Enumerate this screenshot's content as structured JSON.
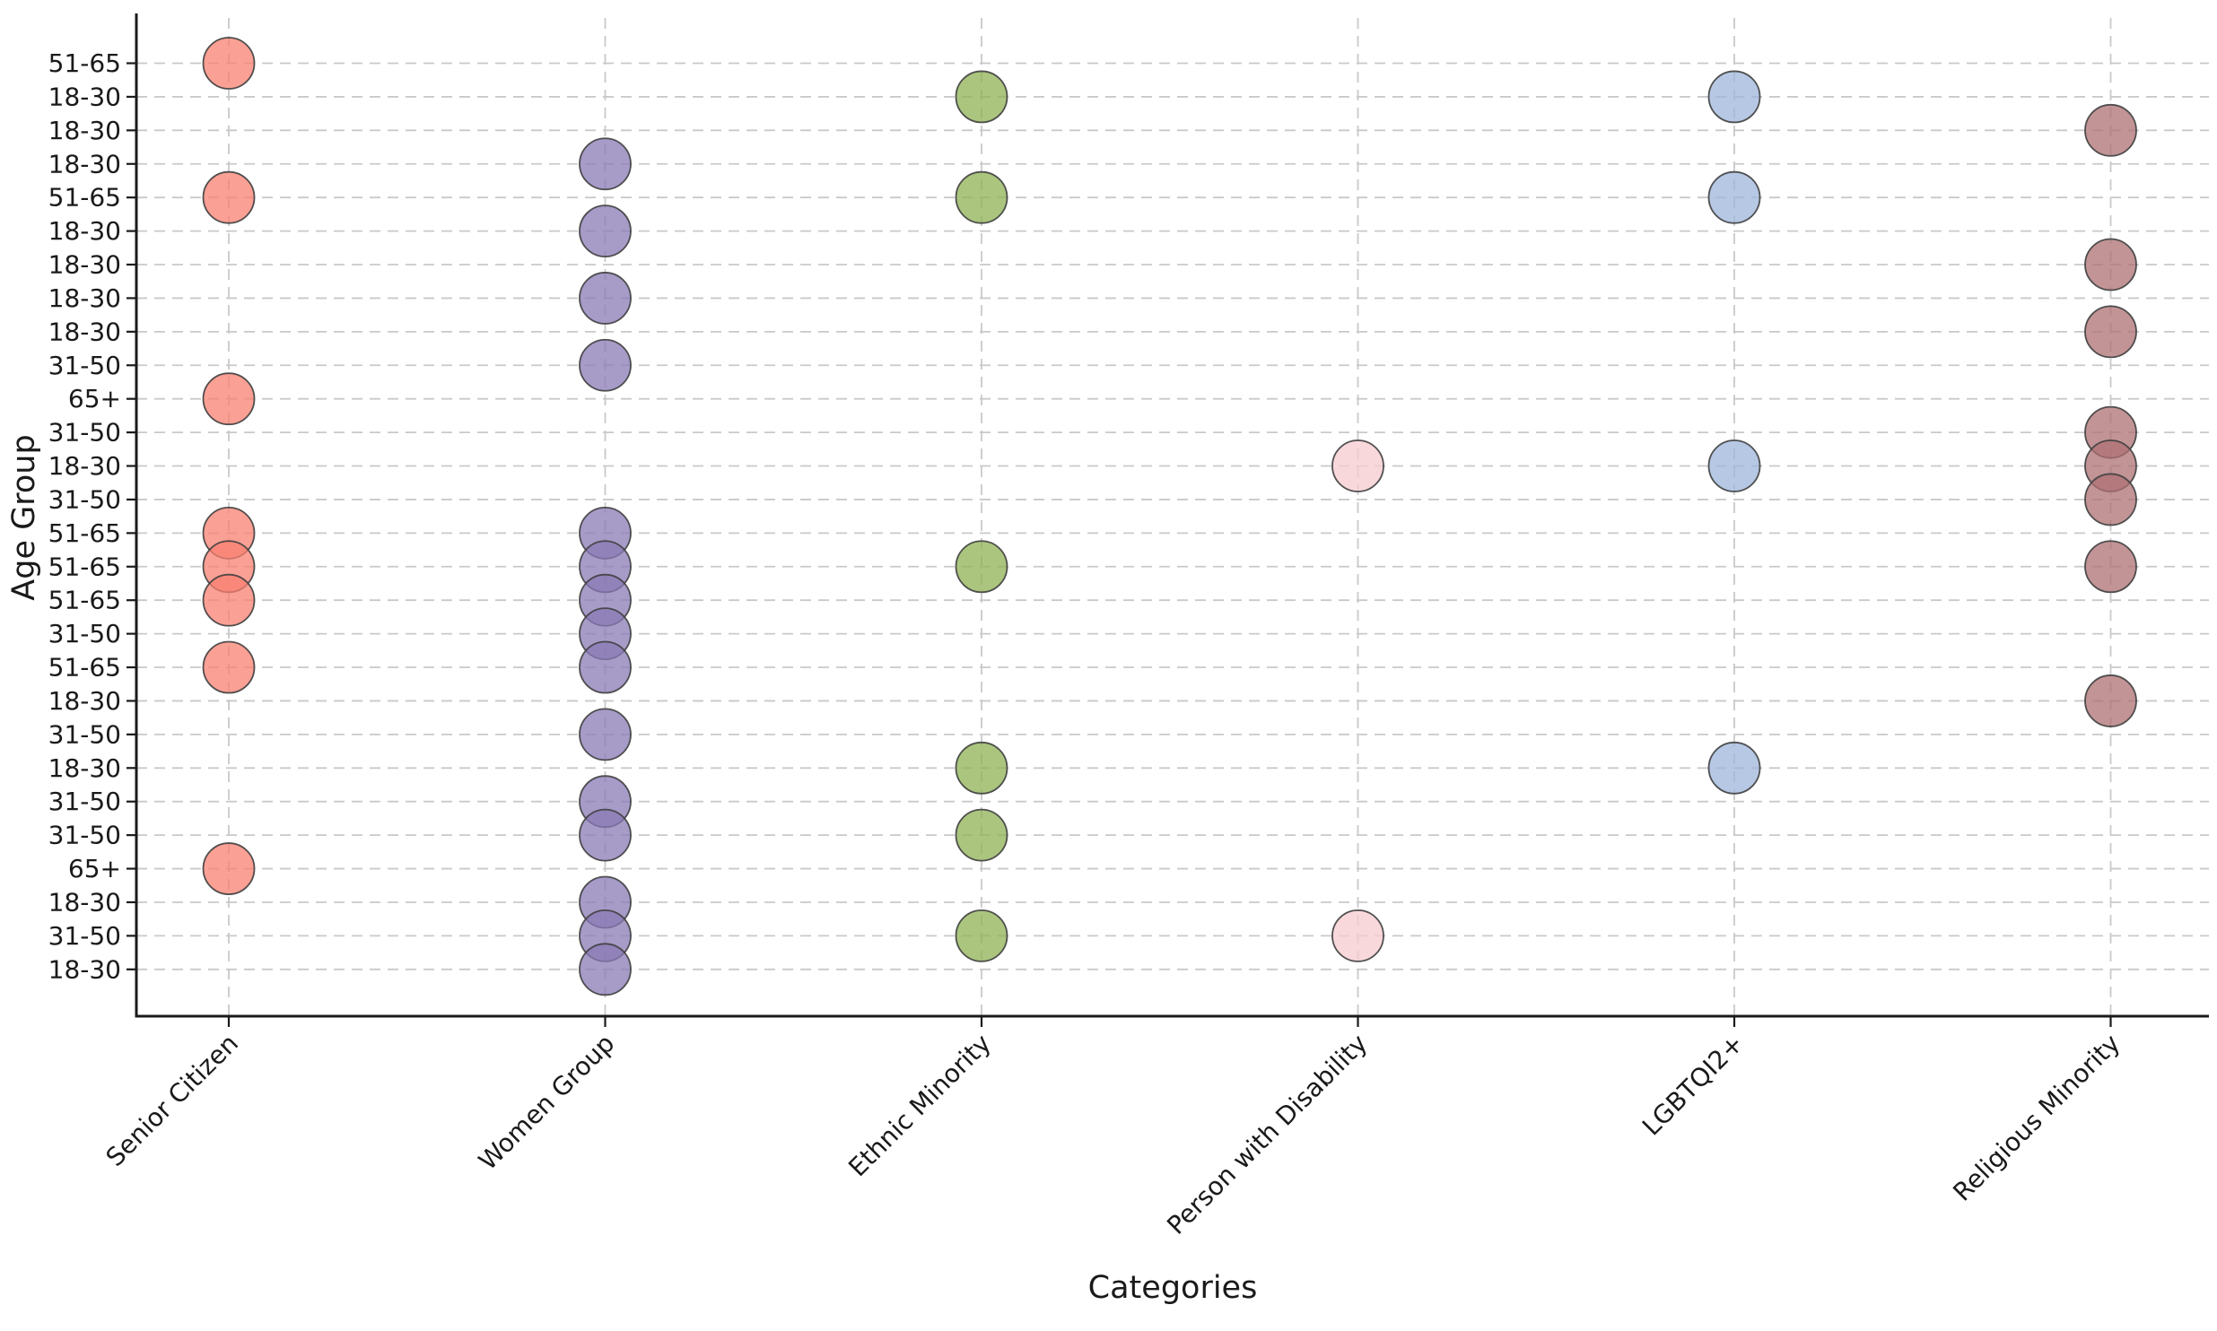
{
  "chart_data": {
    "type": "scatter",
    "title": "",
    "xlabel": "Categories",
    "ylabel": "Age Group",
    "grid": "dashed, both axes",
    "legend_position": "none",
    "categories": [
      "Senior Citizen",
      "Women Group",
      "Ethnic Minority",
      "Person with Disability",
      "LGBTQI2+",
      "Religious Minority"
    ],
    "y_axis_rows_top_to_bottom": [
      "51-65",
      "18-30",
      "18-30",
      "18-30",
      "51-65",
      "18-30",
      "18-30",
      "18-30",
      "18-30",
      "31-50",
      "65+",
      "31-50",
      "18-30",
      "31-50",
      "51-65",
      "51-65",
      "51-65",
      "31-50",
      "51-65",
      "18-30",
      "31-50",
      "18-30",
      "31-50",
      "31-50",
      "65+",
      "18-30",
      "31-50",
      "18-30"
    ],
    "series": [
      {
        "name": "Senior Citizen",
        "color": "#FA8072",
        "rows_top_indexed": [
          1,
          5,
          11,
          15,
          16,
          17,
          19,
          25
        ],
        "age_groups": [
          "51-65",
          "51-65",
          "65+",
          "51-65",
          "51-65",
          "51-65",
          "51-65",
          "65+"
        ]
      },
      {
        "name": "Women Group",
        "color": "#8A7AB6",
        "rows_top_indexed": [
          4,
          6,
          8,
          10,
          15,
          16,
          17,
          18,
          19,
          21,
          23,
          24,
          26,
          27,
          28
        ],
        "age_groups": [
          "18-30",
          "18-30",
          "18-30",
          "31-50",
          "51-65",
          "51-65",
          "51-65",
          "31-50",
          "51-65",
          "31-50",
          "31-50",
          "31-50",
          "18-30",
          "31-50",
          "18-30"
        ]
      },
      {
        "name": "Ethnic Minority",
        "color": "#8FB154",
        "rows_top_indexed": [
          2,
          5,
          16,
          22,
          24,
          27
        ],
        "age_groups": [
          "18-30",
          "51-65",
          "51-65",
          "18-30",
          "31-50",
          "31-50"
        ]
      },
      {
        "name": "Person with Disability",
        "color": "#F7CBCF",
        "rows_top_indexed": [
          13,
          27
        ],
        "age_groups": [
          "18-30",
          "31-50"
        ]
      },
      {
        "name": "LGBTQI2+",
        "color": "#9EB6DB",
        "rows_top_indexed": [
          2,
          5,
          13,
          22
        ],
        "age_groups": [
          "18-30",
          "51-65",
          "18-30",
          "18-30"
        ]
      },
      {
        "name": "Religious Minority",
        "color": "#AE7073",
        "rows_top_indexed": [
          3,
          7,
          9,
          12,
          13,
          14,
          16,
          20
        ],
        "age_groups": [
          "18-30",
          "18-30",
          "18-30",
          "31-50",
          "18-30",
          "31-50",
          "51-65",
          "18-30"
        ]
      }
    ],
    "marker": {
      "radius_px": 28.5,
      "fill_opacity": 0.75,
      "stroke_color": "#3f3f3f",
      "stroke_width": 1.8
    },
    "style": {
      "grid_color": "#c9c9c9",
      "spine_color": "#1a1a1a",
      "background": "#ffffff"
    }
  }
}
